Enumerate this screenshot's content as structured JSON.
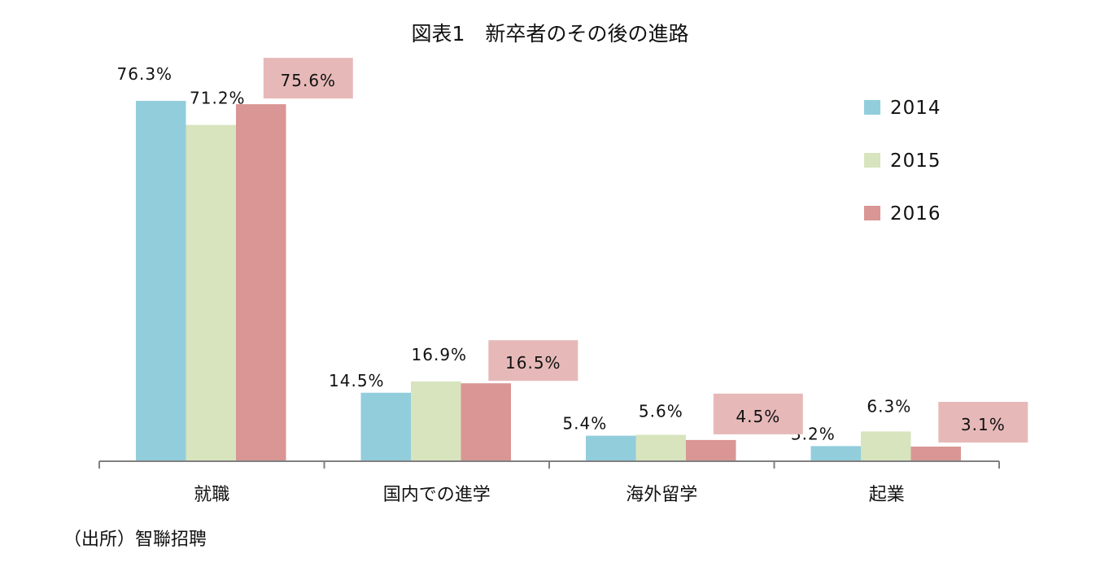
{
  "chart_data": {
    "type": "bar",
    "title": "図表1　新卒者のその後の進路",
    "categories": [
      "就職",
      "国内での進学",
      "海外留学",
      "起業"
    ],
    "series": [
      {
        "name": "2014",
        "values": [
          76.3,
          14.5,
          5.4,
          3.2
        ],
        "labels": [
          "76.3%",
          "14.5%",
          "5.4%",
          "3.2%"
        ],
        "color": "#92CDDC"
      },
      {
        "name": "2015",
        "values": [
          71.2,
          16.9,
          5.6,
          6.3
        ],
        "labels": [
          "71.2%",
          "16.9%",
          "5.6%",
          "6.3%"
        ],
        "color": "#D7E4BD"
      },
      {
        "name": "2016",
        "values": [
          75.6,
          16.5,
          4.5,
          3.1
        ],
        "labels": [
          "75.6%",
          "16.5%",
          "4.5%",
          "3.1%"
        ],
        "color": "#D99694"
      }
    ],
    "highlight_label_bg": "#E6B9B8",
    "ylim": [
      0,
      80
    ],
    "grid": false,
    "legend_position": "top-right",
    "source": "（出所）智聯招聘"
  }
}
